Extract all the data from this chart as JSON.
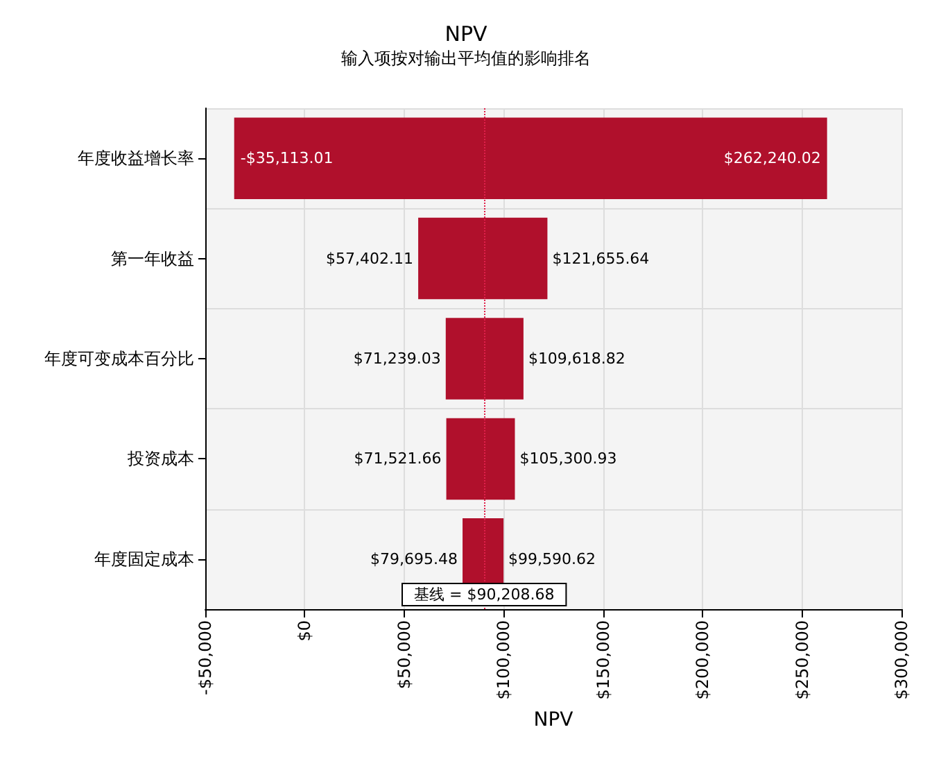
{
  "chart_data": {
    "type": "bar",
    "orientation": "horizontal",
    "title": "NPV",
    "subtitle": "输入项按对输出平均值的影响排名",
    "xlabel": "NPV",
    "categories": [
      "年度收益增长率",
      "第一年收益",
      "年度可变成本百分比",
      "投资成本",
      "年度固定成本"
    ],
    "base": [
      -35113.01,
      57402.11,
      71239.03,
      71521.66,
      79695.48
    ],
    "values": [
      297353.03,
      64253.53,
      38379.79,
      33779.27,
      19895.14
    ],
    "color": "#b0102c",
    "xlim": [
      -50000,
      300000
    ],
    "xticks": [
      {
        "value": -50000,
        "label": "-$50,000"
      },
      {
        "value": 0,
        "label": "$0"
      },
      {
        "value": 50000,
        "label": "$50,000"
      },
      {
        "value": 100000,
        "label": "$100,000"
      },
      {
        "value": 150000,
        "label": "$150,000"
      },
      {
        "value": 200000,
        "label": "$200,000"
      },
      {
        "value": 250000,
        "label": "$250,000"
      },
      {
        "value": 300000,
        "label": "$300,000"
      }
    ],
    "grid": true,
    "ref_lines": [
      {
        "axis": "x",
        "value": 90208.68,
        "label": "基线 = $90,208.68",
        "color": "#e0204a",
        "line_style": "dotted"
      }
    ],
    "annotations": [
      {
        "text": "-$35,113.01",
        "x": -35113.01,
        "y": "年度收益增长率"
      },
      {
        "text": "$262,240.02",
        "x": 262240.02,
        "y": "年度收益增长率"
      },
      {
        "text": "$57,402.11",
        "x": 57402.11,
        "y": "第一年收益"
      },
      {
        "text": "$121,655.64",
        "x": 121655.64,
        "y": "第一年收益"
      },
      {
        "text": "$71,239.03",
        "x": 71239.03,
        "y": "年度可变成本百分比"
      },
      {
        "text": "$109,618.82",
        "x": 109618.82,
        "y": "年度可变成本百分比"
      },
      {
        "text": "$71,521.66",
        "x": 71521.66,
        "y": "投资成本"
      },
      {
        "text": "$105,300.93",
        "x": 105300.93,
        "y": "投资成本"
      },
      {
        "text": "$79,695.48",
        "x": 79695.48,
        "y": "年度固定成本"
      },
      {
        "text": "$99,590.62",
        "x": 99590.62,
        "y": "年度固定成本"
      }
    ]
  }
}
